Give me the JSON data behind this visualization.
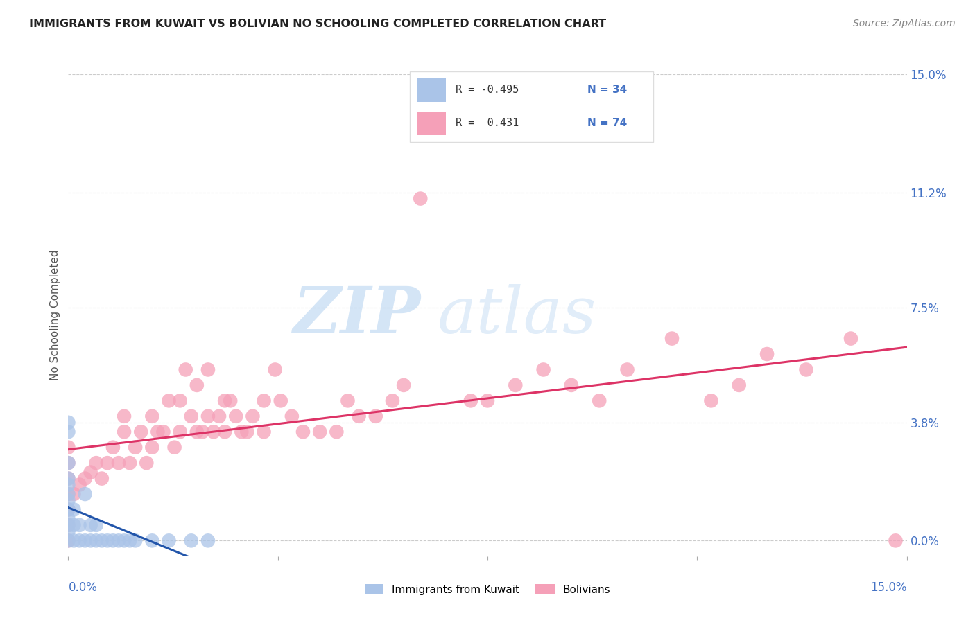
{
  "title": "IMMIGRANTS FROM KUWAIT VS BOLIVIAN NO SCHOOLING COMPLETED CORRELATION CHART",
  "source": "Source: ZipAtlas.com",
  "ylabel": "No Schooling Completed",
  "ytick_values": [
    0.0,
    3.8,
    7.5,
    11.2,
    15.0
  ],
  "xlim": [
    0.0,
    15.0
  ],
  "ylim": [
    -0.5,
    15.0
  ],
  "kuwait_color": "#aac4e8",
  "bolivian_color": "#f5a0b8",
  "kuwait_line_color": "#2255aa",
  "bolivian_line_color": "#dd3366",
  "watermark_zip": "ZIP",
  "watermark_atlas": "atlas",
  "kuwait_points_x": [
    0.0,
    0.0,
    0.0,
    0.0,
    0.0,
    0.0,
    0.0,
    0.0,
    0.0,
    0.0,
    0.0,
    0.0,
    0.1,
    0.1,
    0.1,
    0.2,
    0.2,
    0.3,
    0.3,
    0.4,
    0.4,
    0.5,
    0.5,
    0.6,
    0.7,
    0.8,
    0.9,
    1.0,
    1.1,
    1.2,
    1.5,
    1.8,
    2.2,
    2.5
  ],
  "kuwait_points_y": [
    0.0,
    0.3,
    0.5,
    0.7,
    1.0,
    1.3,
    1.5,
    1.8,
    2.0,
    2.5,
    3.5,
    3.8,
    0.0,
    0.5,
    1.0,
    0.0,
    0.5,
    0.0,
    1.5,
    0.0,
    0.5,
    0.0,
    0.5,
    0.0,
    0.0,
    0.0,
    0.0,
    0.0,
    0.0,
    0.0,
    0.0,
    0.0,
    0.0,
    0.0
  ],
  "bolivian_points_x": [
    0.0,
    0.0,
    0.0,
    0.0,
    0.0,
    0.0,
    0.0,
    0.1,
    0.2,
    0.3,
    0.4,
    0.5,
    0.6,
    0.7,
    0.8,
    0.9,
    1.0,
    1.0,
    1.1,
    1.2,
    1.3,
    1.4,
    1.5,
    1.5,
    1.6,
    1.7,
    1.8,
    1.9,
    2.0,
    2.0,
    2.1,
    2.2,
    2.3,
    2.3,
    2.4,
    2.5,
    2.5,
    2.6,
    2.7,
    2.8,
    2.8,
    2.9,
    3.0,
    3.1,
    3.2,
    3.3,
    3.5,
    3.5,
    3.7,
    3.8,
    4.0,
    4.2,
    4.5,
    4.8,
    5.0,
    5.2,
    5.5,
    5.8,
    6.0,
    6.3,
    7.2,
    7.5,
    8.0,
    8.5,
    9.0,
    9.5,
    10.0,
    10.8,
    11.5,
    12.0,
    12.5,
    13.2,
    14.0,
    14.8
  ],
  "bolivian_points_y": [
    0.0,
    0.5,
    1.0,
    1.5,
    2.0,
    2.5,
    3.0,
    1.5,
    1.8,
    2.0,
    2.2,
    2.5,
    2.0,
    2.5,
    3.0,
    2.5,
    3.5,
    4.0,
    2.5,
    3.0,
    3.5,
    2.5,
    3.0,
    4.0,
    3.5,
    3.5,
    4.5,
    3.0,
    3.5,
    4.5,
    5.5,
    4.0,
    3.5,
    5.0,
    3.5,
    4.0,
    5.5,
    3.5,
    4.0,
    4.5,
    3.5,
    4.5,
    4.0,
    3.5,
    3.5,
    4.0,
    4.5,
    3.5,
    5.5,
    4.5,
    4.0,
    3.5,
    3.5,
    3.5,
    4.5,
    4.0,
    4.0,
    4.5,
    5.0,
    11.0,
    4.5,
    4.5,
    5.0,
    5.5,
    5.0,
    4.5,
    5.5,
    6.5,
    4.5,
    5.0,
    6.0,
    5.5,
    6.5,
    0.0
  ]
}
